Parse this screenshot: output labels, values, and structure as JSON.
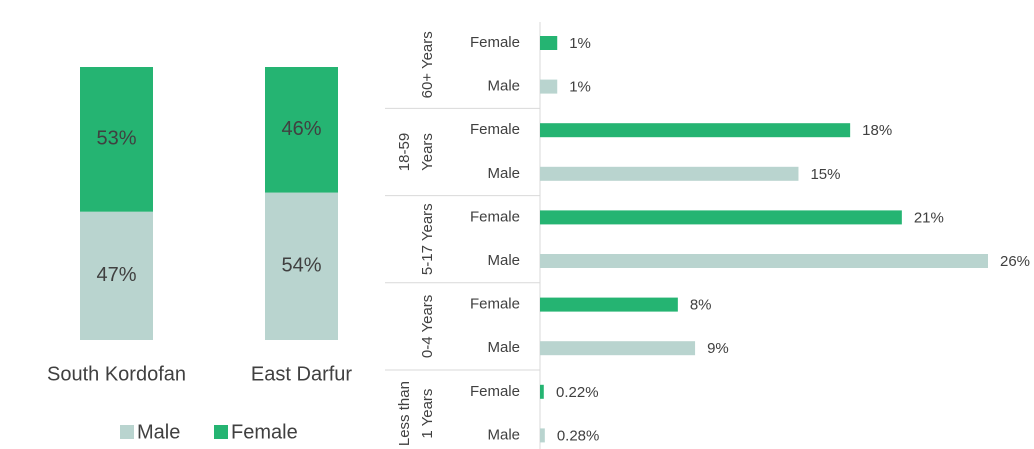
{
  "chart_data": [
    {
      "type": "stacked-bar",
      "categories": [
        "South Kordofan",
        "East Darfur"
      ],
      "series": [
        {
          "name": "Male",
          "color": "#b9d4cf",
          "values": [
            47,
            54
          ],
          "value_labels": [
            "47%",
            "54%"
          ]
        },
        {
          "name": "Female",
          "color": "#25b472",
          "values": [
            53,
            46
          ],
          "value_labels": [
            "53%",
            "46%"
          ]
        }
      ],
      "ylim": [
        0,
        100
      ],
      "legend": "bottom"
    },
    {
      "type": "hbar",
      "categories": [
        [
          "60+ Years"
        ],
        [
          "18-59",
          "Years"
        ],
        [
          "5-17 Years"
        ],
        [
          "0-4 Years"
        ],
        [
          "Less than",
          "1 Years"
        ]
      ],
      "series": [
        {
          "name": "Female",
          "color": "#25b472",
          "values": [
            1,
            18,
            21,
            8,
            0.22
          ],
          "value_labels": [
            "1%",
            "18%",
            "21%",
            "8%",
            "0.22%"
          ]
        },
        {
          "name": "Male",
          "color": "#b9d4cf",
          "values": [
            1,
            15,
            26,
            9,
            0.28
          ],
          "value_labels": [
            "1%",
            "15%",
            "26%",
            "9%",
            "0.28%"
          ]
        }
      ],
      "xlim": [
        0,
        26
      ]
    }
  ]
}
